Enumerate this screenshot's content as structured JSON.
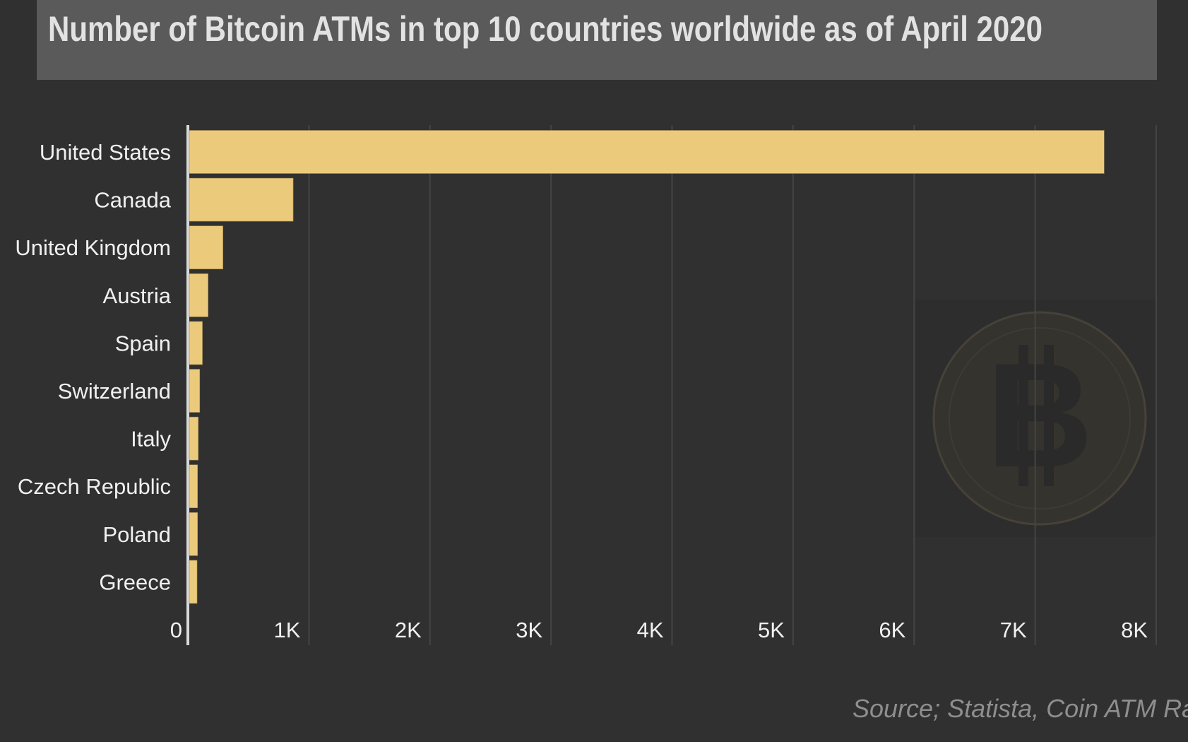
{
  "chart_data": {
    "type": "bar",
    "orientation": "horizontal",
    "title": "Number of Bitcoin ATMs in top 10 countries worldwide as of April 2020",
    "categories": [
      "United States",
      "Canada",
      "United Kingdom",
      "Austria",
      "Spain",
      "Switzerland",
      "Italy",
      "Czech Republic",
      "Poland",
      "Greece"
    ],
    "values": [
      7570,
      870,
      290,
      167,
      120,
      98,
      86,
      80,
      80,
      76
    ],
    "xlim": [
      0,
      8000
    ],
    "xticks": [
      0,
      1000,
      2000,
      3000,
      4000,
      5000,
      6000,
      7000,
      8000
    ],
    "xtick_labels": [
      "0",
      "1K",
      "2K",
      "3K",
      "4K",
      "5K",
      "6K",
      "7K",
      "8K"
    ],
    "grid": "vertical",
    "bar_color": "#ebcb7b",
    "background_color": "#303030",
    "watermark": "bitcoin-coin-icon",
    "source": "Source; Statista, Coin ATM Radar"
  }
}
